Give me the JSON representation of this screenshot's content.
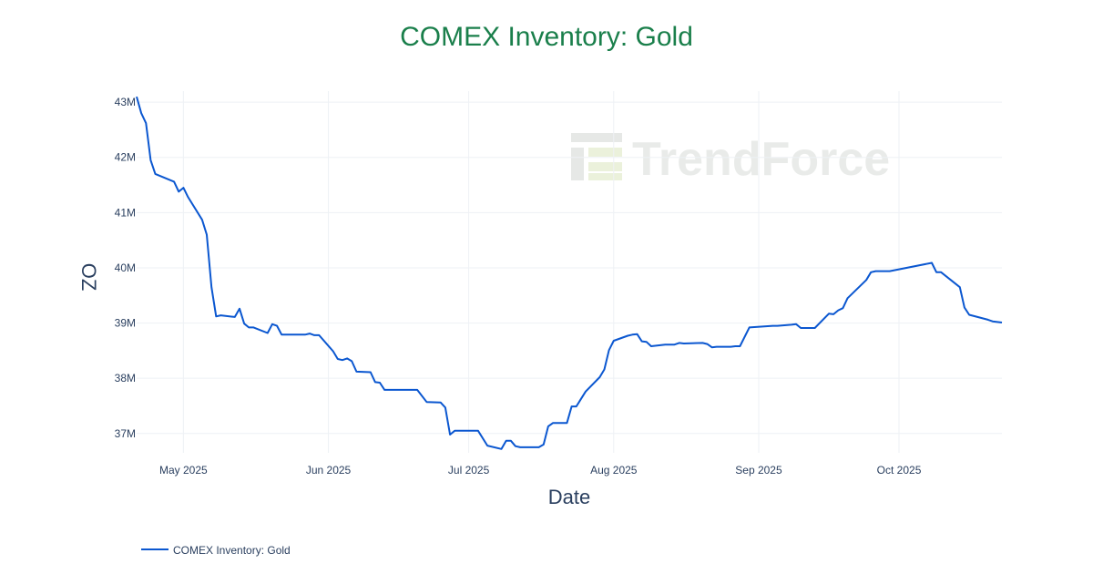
{
  "chart_data": {
    "type": "line",
    "title": "COMEX Inventory: Gold",
    "xlabel": "Date",
    "ylabel": "OZ",
    "x_ticks": [
      {
        "date": "2025-05-01",
        "label": "May 2025"
      },
      {
        "date": "2025-06-01",
        "label": "Jun 2025"
      },
      {
        "date": "2025-07-01",
        "label": "Jul 2025"
      },
      {
        "date": "2025-08-01",
        "label": "Aug 2025"
      },
      {
        "date": "2025-09-01",
        "label": "Sep 2025"
      },
      {
        "date": "2025-10-01",
        "label": "Oct 2025"
      }
    ],
    "y_ticks": [
      {
        "value": 37000000,
        "label": "37M"
      },
      {
        "value": 38000000,
        "label": "38M"
      },
      {
        "value": 39000000,
        "label": "39M"
      },
      {
        "value": 40000000,
        "label": "40M"
      },
      {
        "value": 41000000,
        "label": "41M"
      },
      {
        "value": 42000000,
        "label": "42M"
      },
      {
        "value": 43000000,
        "label": "43M"
      }
    ],
    "xlim": [
      "2025-04-21",
      "2025-10-23"
    ],
    "ylim": [
      36650000,
      43200000
    ],
    "grid": true,
    "legend_position": "bottom-left",
    "series": [
      {
        "name": "COMEX Inventory: Gold",
        "color": "#0b57d0",
        "points": [
          [
            "2025-04-21",
            43100000
          ],
          [
            "2025-04-22",
            42800000
          ],
          [
            "2025-04-23",
            42620000
          ],
          [
            "2025-04-24",
            41950000
          ],
          [
            "2025-04-25",
            41700000
          ],
          [
            "2025-04-29",
            41560000
          ],
          [
            "2025-04-30",
            41380000
          ],
          [
            "2025-05-01",
            41450000
          ],
          [
            "2025-05-02",
            41280000
          ],
          [
            "2025-05-05",
            40870000
          ],
          [
            "2025-05-06",
            40600000
          ],
          [
            "2025-05-07",
            39650000
          ],
          [
            "2025-05-08",
            39120000
          ],
          [
            "2025-05-09",
            39140000
          ],
          [
            "2025-05-12",
            39110000
          ],
          [
            "2025-05-13",
            39260000
          ],
          [
            "2025-05-14",
            38990000
          ],
          [
            "2025-05-15",
            38920000
          ],
          [
            "2025-05-16",
            38920000
          ],
          [
            "2025-05-19",
            38820000
          ],
          [
            "2025-05-20",
            38980000
          ],
          [
            "2025-05-21",
            38950000
          ],
          [
            "2025-05-22",
            38790000
          ],
          [
            "2025-05-27",
            38790000
          ],
          [
            "2025-05-28",
            38810000
          ],
          [
            "2025-05-29",
            38780000
          ],
          [
            "2025-05-30",
            38780000
          ],
          [
            "2025-06-02",
            38490000
          ],
          [
            "2025-06-03",
            38350000
          ],
          [
            "2025-06-04",
            38330000
          ],
          [
            "2025-06-05",
            38360000
          ],
          [
            "2025-06-06",
            38310000
          ],
          [
            "2025-06-07",
            38120000
          ],
          [
            "2025-06-10",
            38110000
          ],
          [
            "2025-06-11",
            37930000
          ],
          [
            "2025-06-12",
            37920000
          ],
          [
            "2025-06-13",
            37790000
          ],
          [
            "2025-06-20",
            37790000
          ],
          [
            "2025-06-22",
            37570000
          ],
          [
            "2025-06-25",
            37560000
          ],
          [
            "2025-06-26",
            37470000
          ],
          [
            "2025-06-27",
            36980000
          ],
          [
            "2025-06-28",
            37050000
          ],
          [
            "2025-07-02",
            37050000
          ],
          [
            "2025-07-03",
            37050000
          ],
          [
            "2025-07-05",
            36780000
          ],
          [
            "2025-07-08",
            36720000
          ],
          [
            "2025-07-09",
            36870000
          ],
          [
            "2025-07-10",
            36870000
          ],
          [
            "2025-07-11",
            36770000
          ],
          [
            "2025-07-12",
            36750000
          ],
          [
            "2025-07-16",
            36750000
          ],
          [
            "2025-07-17",
            36800000
          ],
          [
            "2025-07-18",
            37130000
          ],
          [
            "2025-07-19",
            37190000
          ],
          [
            "2025-07-22",
            37190000
          ],
          [
            "2025-07-23",
            37490000
          ],
          [
            "2025-07-24",
            37490000
          ],
          [
            "2025-07-26",
            37760000
          ],
          [
            "2025-07-29",
            38020000
          ],
          [
            "2025-07-30",
            38160000
          ],
          [
            "2025-07-31",
            38510000
          ],
          [
            "2025-08-01",
            38680000
          ],
          [
            "2025-08-04",
            38770000
          ],
          [
            "2025-08-05",
            38790000
          ],
          [
            "2025-08-06",
            38800000
          ],
          [
            "2025-08-07",
            38670000
          ],
          [
            "2025-08-08",
            38660000
          ],
          [
            "2025-08-09",
            38580000
          ],
          [
            "2025-08-12",
            38610000
          ],
          [
            "2025-08-14",
            38610000
          ],
          [
            "2025-08-15",
            38640000
          ],
          [
            "2025-08-16",
            38630000
          ],
          [
            "2025-08-20",
            38640000
          ],
          [
            "2025-08-21",
            38620000
          ],
          [
            "2025-08-22",
            38560000
          ],
          [
            "2025-08-23",
            38570000
          ],
          [
            "2025-08-26",
            38570000
          ],
          [
            "2025-08-27",
            38580000
          ],
          [
            "2025-08-28",
            38580000
          ],
          [
            "2025-08-30",
            38920000
          ],
          [
            "2025-09-04",
            38950000
          ],
          [
            "2025-09-05",
            38950000
          ],
          [
            "2025-09-08",
            38970000
          ],
          [
            "2025-09-09",
            38980000
          ],
          [
            "2025-09-10",
            38910000
          ],
          [
            "2025-09-13",
            38910000
          ],
          [
            "2025-09-16",
            39170000
          ],
          [
            "2025-09-17",
            39160000
          ],
          [
            "2025-09-18",
            39230000
          ],
          [
            "2025-09-19",
            39270000
          ],
          [
            "2025-09-20",
            39450000
          ],
          [
            "2025-09-24",
            39780000
          ],
          [
            "2025-09-25",
            39920000
          ],
          [
            "2025-09-26",
            39940000
          ],
          [
            "2025-09-29",
            39940000
          ],
          [
            "2025-10-08",
            40090000
          ],
          [
            "2025-10-09",
            39920000
          ],
          [
            "2025-10-10",
            39920000
          ],
          [
            "2025-10-14",
            39650000
          ],
          [
            "2025-10-15",
            39280000
          ],
          [
            "2025-10-16",
            39150000
          ],
          [
            "2025-10-20",
            39060000
          ],
          [
            "2025-10-21",
            39030000
          ],
          [
            "2025-10-23",
            39010000
          ]
        ]
      }
    ]
  },
  "watermark": {
    "text": "TrendForce",
    "colors": [
      "#c9ccc9",
      "#dfe8c8"
    ]
  }
}
